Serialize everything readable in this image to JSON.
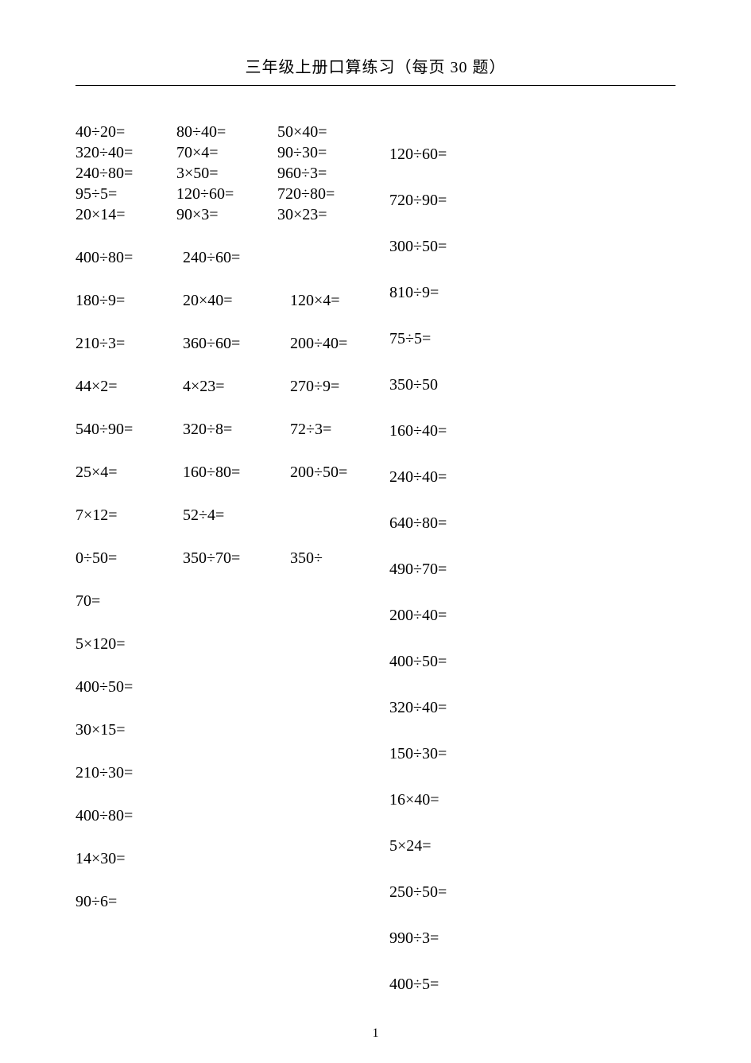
{
  "doc": {
    "title": "三年级上册口算练习（每页 30 题）",
    "page_number": "1",
    "text_color": "#000000",
    "bg_color": "#ffffff",
    "font_size_pt": 15,
    "left_rows": [
      {
        "cells": [
          "40÷20=",
          "80÷40=",
          "50×40="
        ],
        "gap": "tight"
      },
      {
        "cells": [
          "320÷40=",
          "70×4=",
          "90÷30="
        ],
        "gap": "tight"
      },
      {
        "cells": [
          "240÷80=",
          "3×50=",
          "960÷3="
        ],
        "gap": "tight"
      },
      {
        "cells": [
          "95÷5=",
          "120÷60=",
          "720÷80="
        ],
        "gap": "tight"
      },
      {
        "cells": [
          "20×14=",
          "90×3=",
          "30×23="
        ],
        "gap": "tight"
      },
      {
        "cells": [
          "400÷80=",
          "240÷60="
        ],
        "gap": "spaced"
      },
      {
        "cells": [
          "180÷9=",
          "20×40=",
          "120×4="
        ],
        "gap": "spaced"
      },
      {
        "cells": [
          "210÷3=",
          "360÷60=",
          "200÷40="
        ],
        "gap": "spaced"
      },
      {
        "cells": [
          "44×2=",
          "4×23=",
          "270÷9="
        ],
        "gap": "spaced"
      },
      {
        "cells": [
          "540÷90=",
          "320÷8=",
          "72÷3="
        ],
        "gap": "spaced"
      },
      {
        "cells": [
          "25×4=",
          "160÷80=",
          "200÷50="
        ],
        "gap": "spaced"
      },
      {
        "cells": [
          "7×12=",
          "52÷4="
        ],
        "gap": "spaced"
      },
      {
        "cells": [
          "0÷50=",
          "350÷70=",
          "350÷"
        ],
        "gap": "spaced"
      },
      {
        "cells": [
          "70="
        ],
        "gap": "spaced"
      },
      {
        "cells": [
          "5×120="
        ],
        "gap": "spaced"
      },
      {
        "cells": [
          "400÷50="
        ],
        "gap": "spaced"
      },
      {
        "cells": [
          "30×15="
        ],
        "gap": "spaced"
      },
      {
        "cells": [
          "210÷30="
        ],
        "gap": "spaced"
      },
      {
        "cells": [
          "400÷80="
        ],
        "gap": "spaced"
      },
      {
        "cells": [
          "14×30="
        ],
        "gap": "spaced"
      },
      {
        "cells": [
          "90÷6="
        ],
        "gap": "spaced"
      }
    ],
    "right_rows": [
      "120÷60=",
      "720÷90=",
      "300÷50=",
      "810÷9=",
      "75÷5=",
      "350÷50",
      "160÷40=",
      "240÷40=",
      "640÷80=",
      "490÷70=",
      "200÷40=",
      "400÷50=",
      "320÷40=",
      "150÷30=",
      "16×40=",
      "5×24=",
      "250÷50=",
      "990÷3=",
      "400÷5="
    ]
  }
}
